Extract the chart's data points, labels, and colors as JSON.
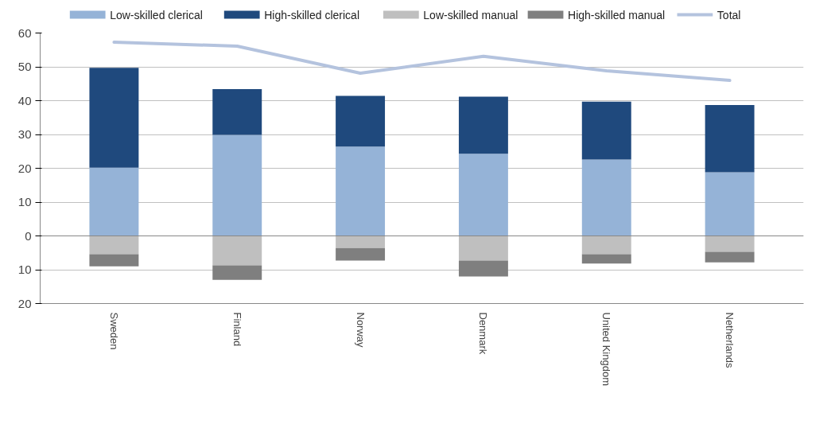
{
  "chart_data": {
    "type": "bar",
    "stacked": true,
    "categories": [
      "Sweden",
      "Finland",
      "Norway",
      "Denmark",
      "United Kingdom",
      "Netherlands"
    ],
    "series": [
      {
        "name": "Low-skilled clerical",
        "color": "#95b3d7",
        "values": [
          20.2,
          29.9,
          26.4,
          24.3,
          22.6,
          18.8
        ]
      },
      {
        "name": "High-skilled clerical",
        "color": "#1f497d",
        "values": [
          29.5,
          13.5,
          15.0,
          16.9,
          17.1,
          19.9
        ]
      },
      {
        "name": "Low-skilled manual",
        "color": "#bfbfbf",
        "values": [
          -5.4,
          -8.7,
          -3.6,
          -7.3,
          -5.4,
          -4.7
        ]
      },
      {
        "name": "High-skilled manual",
        "color": "#7f7f7f",
        "values": [
          -3.6,
          -4.3,
          -3.7,
          -4.7,
          -2.8,
          -3.1
        ]
      },
      {
        "name": "Total",
        "type": "line",
        "color": "#b4c3de",
        "values": [
          57.3,
          56.1,
          48.1,
          53.1,
          48.8,
          46.0
        ]
      }
    ],
    "ylim": [
      -20,
      60
    ],
    "yticks": [
      {
        "value": -20,
        "label": "20"
      },
      {
        "value": -10,
        "label": "10"
      },
      0,
      10,
      20,
      30,
      40,
      50,
      60
    ],
    "grid": "y",
    "legend": "top"
  }
}
